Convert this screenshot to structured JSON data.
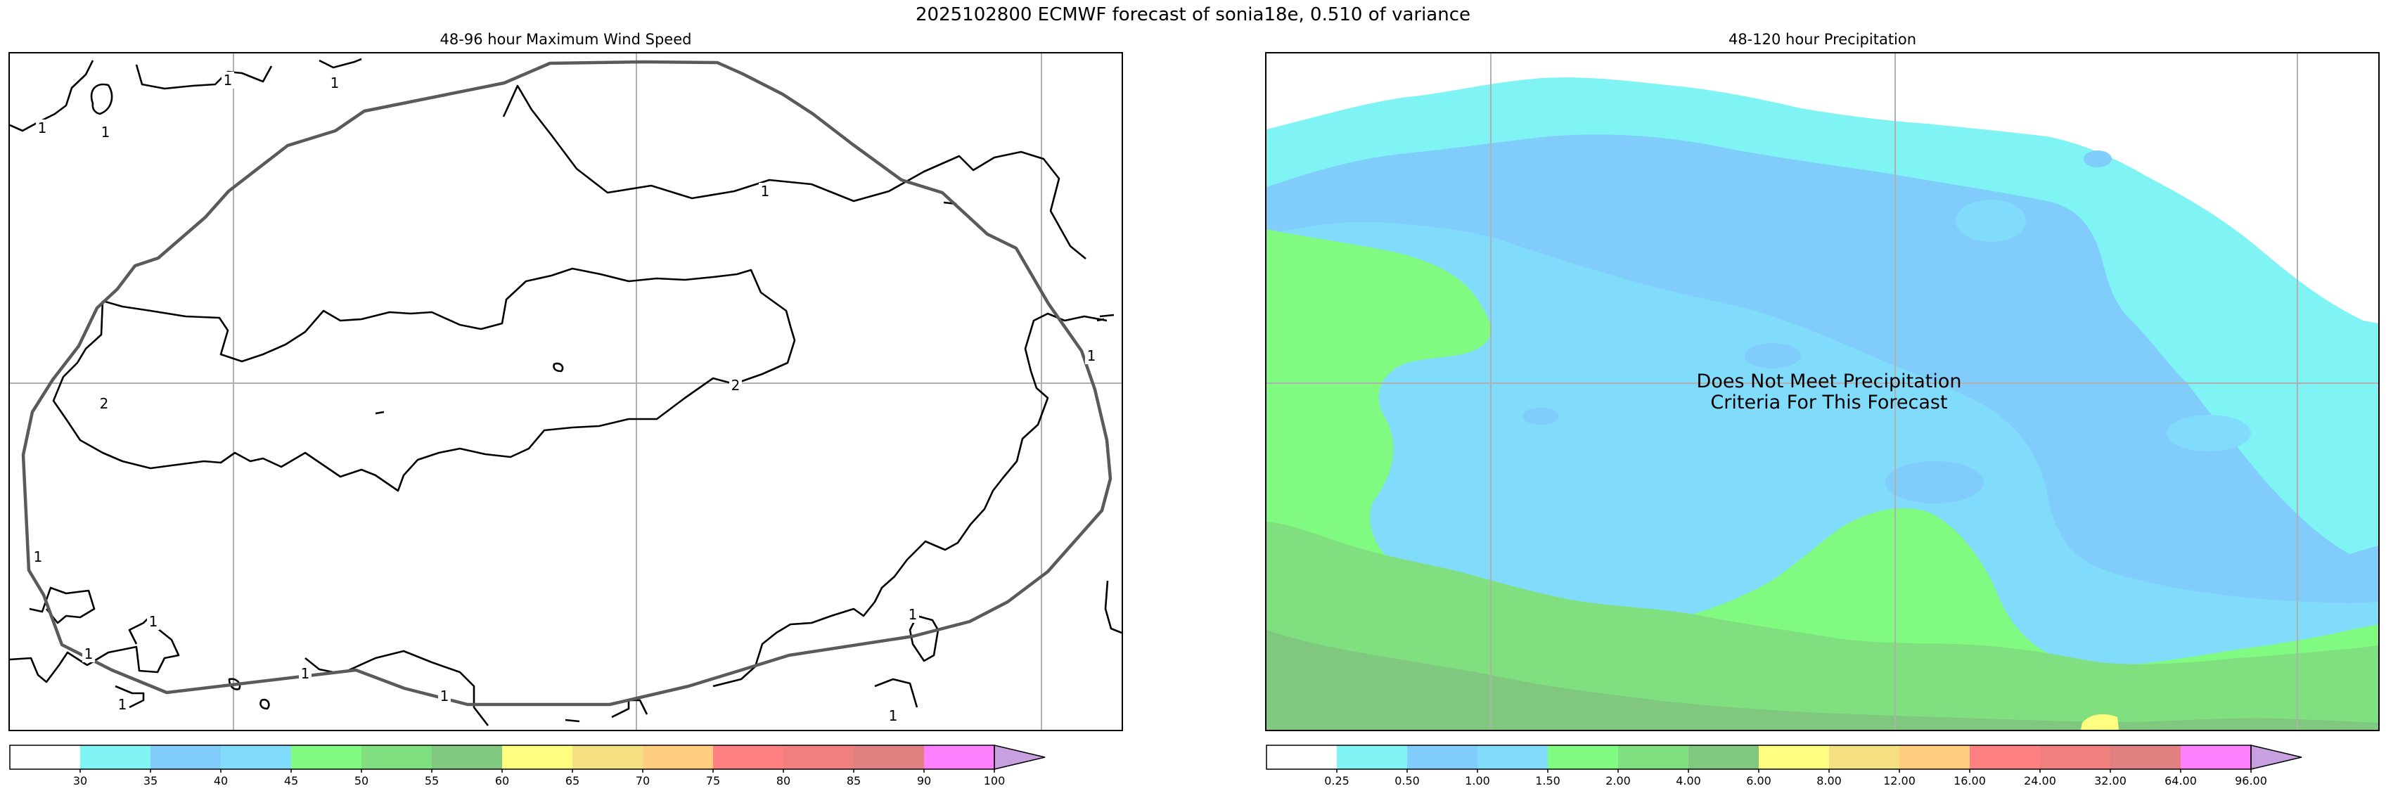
{
  "figure_title": "2025102800 ECMWF forecast of sonia18e, 0.510 of variance",
  "colors": {
    "wind_levels": [
      "#ffffff",
      "#80f4f4",
      "#80ccfa",
      "#80dcfa",
      "#80fa80",
      "#80e080",
      "#80c880",
      "#fffe80",
      "#f4e080",
      "#ffcc80",
      "#ff8080",
      "#f08080",
      "#e08080",
      "#ff80ff",
      "#c8a0e0"
    ],
    "precip_levels": [
      "#ffffff",
      "#80f4f4",
      "#80ccfa",
      "#80dcfa",
      "#80fa80",
      "#80e080",
      "#80c880",
      "#fffe80",
      "#f4e080",
      "#ffcc80",
      "#ff8080",
      "#f08080",
      "#e08080",
      "#ff80ff",
      "#c8a0e0"
    ],
    "track": "#5a5a5a",
    "grid": "#b0b0b0"
  },
  "chart_data": [
    {
      "type": "contour",
      "title": "48-96 hour Maximum Wind Speed",
      "contour_labels": [
        "1",
        "1",
        "1",
        "1",
        "1",
        "1",
        "2",
        "2",
        "1",
        "1",
        "1",
        "1",
        "1",
        "1",
        "1",
        "1"
      ],
      "grid": true,
      "colorbar": {
        "ticks": [
          "30",
          "35",
          "40",
          "45",
          "50",
          "55",
          "60",
          "65",
          "70",
          "75",
          "80",
          "85",
          "90",
          "100"
        ],
        "extend": "max"
      }
    },
    {
      "type": "heatmap",
      "title": "48-120 hour Precipitation",
      "annotation": "Does Not Meet Precipitation\nCriteria For This Forecast",
      "grid": true,
      "colorbar": {
        "ticks": [
          "0.25",
          "0.50",
          "1.00",
          "1.50",
          "2.00",
          "4.00",
          "6.00",
          "8.00",
          "12.00",
          "16.00",
          "24.00",
          "32.00",
          "64.00",
          "96.00"
        ],
        "extend": "max"
      }
    }
  ]
}
